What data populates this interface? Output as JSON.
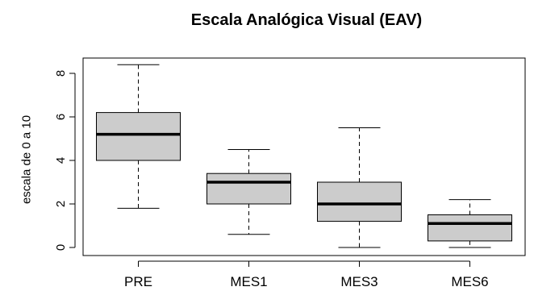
{
  "chart_data": {
    "type": "box",
    "title": "Escala Analógica Visual (EAV)",
    "xlabel": "",
    "ylabel": "escala de 0 a 10",
    "ylim": [
      -0.3,
      8.8
    ],
    "yticks": [
      0,
      2,
      4,
      6,
      8
    ],
    "categories": [
      "PRE",
      "MES1",
      "MES3",
      "MES6"
    ],
    "boxes": [
      {
        "category": "PRE",
        "whisker_low": 1.8,
        "q1": 4.0,
        "median": 5.2,
        "q3": 6.2,
        "whisker_high": 8.4
      },
      {
        "category": "MES1",
        "whisker_low": 0.6,
        "q1": 2.0,
        "median": 3.0,
        "q3": 3.4,
        "whisker_high": 4.5
      },
      {
        "category": "MES3",
        "whisker_low": 0.0,
        "q1": 1.2,
        "median": 2.0,
        "q3": 3.0,
        "whisker_high": 5.5
      },
      {
        "category": "MES6",
        "whisker_low": 0.0,
        "q1": 0.3,
        "median": 1.1,
        "q3": 1.5,
        "whisker_high": 2.2
      }
    ],
    "box_fill": "#cccccc",
    "grid": false
  }
}
